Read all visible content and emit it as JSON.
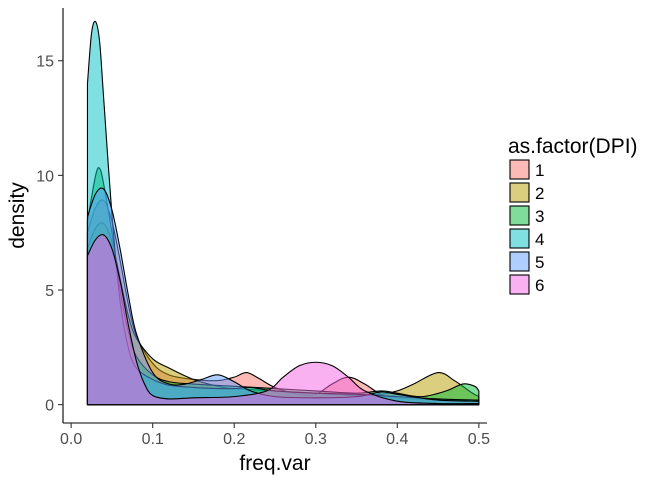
{
  "chart_data": {
    "type": "area",
    "xlabel": "freq.var",
    "ylabel": "density",
    "xlim": [
      -0.01,
      0.51
    ],
    "ylim": [
      -0.8,
      17.3
    ],
    "x_ticks": [
      0.0,
      0.1,
      0.2,
      0.3,
      0.4,
      0.5
    ],
    "x_tick_labels": [
      "0.0",
      "0.1",
      "0.2",
      "0.3",
      "0.4",
      "0.5"
    ],
    "y_ticks": [
      0,
      5,
      10,
      15
    ],
    "y_tick_labels": [
      "0",
      "5",
      "10",
      "15"
    ],
    "grid": false,
    "legend": {
      "title": "as.factor(DPI)",
      "position": "right",
      "entries": [
        "1",
        "2",
        "3",
        "4",
        "5",
        "6"
      ]
    },
    "series": [
      {
        "name": "1",
        "color": "#F8766D",
        "points": [
          [
            0.02,
            7.5
          ],
          [
            0.03,
            8.6
          ],
          [
            0.04,
            8.9
          ],
          [
            0.05,
            8.0
          ],
          [
            0.06,
            6.3
          ],
          [
            0.07,
            4.4
          ],
          [
            0.08,
            3.0
          ],
          [
            0.1,
            1.8
          ],
          [
            0.12,
            1.3
          ],
          [
            0.15,
            1.1
          ],
          [
            0.18,
            1.05
          ],
          [
            0.2,
            1.2
          ],
          [
            0.215,
            1.4
          ],
          [
            0.23,
            1.15
          ],
          [
            0.25,
            0.75
          ],
          [
            0.28,
            0.45
          ],
          [
            0.3,
            0.45
          ],
          [
            0.32,
            0.9
          ],
          [
            0.34,
            1.2
          ],
          [
            0.36,
            0.9
          ],
          [
            0.38,
            0.45
          ],
          [
            0.4,
            0.3
          ],
          [
            0.45,
            0.2
          ],
          [
            0.5,
            0.15
          ]
        ]
      },
      {
        "name": "2",
        "color": "#B79F00",
        "points": [
          [
            0.02,
            6.8
          ],
          [
            0.03,
            7.7
          ],
          [
            0.04,
            7.9
          ],
          [
            0.05,
            7.1
          ],
          [
            0.06,
            5.5
          ],
          [
            0.07,
            3.9
          ],
          [
            0.08,
            2.9
          ],
          [
            0.1,
            2.0
          ],
          [
            0.12,
            1.6
          ],
          [
            0.15,
            1.1
          ],
          [
            0.18,
            0.8
          ],
          [
            0.2,
            0.7
          ],
          [
            0.25,
            0.6
          ],
          [
            0.3,
            0.5
          ],
          [
            0.35,
            0.4
          ],
          [
            0.38,
            0.45
          ],
          [
            0.4,
            0.6
          ],
          [
            0.42,
            0.9
          ],
          [
            0.45,
            1.4
          ],
          [
            0.47,
            1.05
          ],
          [
            0.49,
            0.55
          ],
          [
            0.5,
            0.35
          ]
        ]
      },
      {
        "name": "3",
        "color": "#00BA38",
        "points": [
          [
            0.02,
            8.0
          ],
          [
            0.03,
            10.0
          ],
          [
            0.035,
            10.3
          ],
          [
            0.04,
            9.6
          ],
          [
            0.05,
            7.5
          ],
          [
            0.06,
            5.0
          ],
          [
            0.07,
            3.2
          ],
          [
            0.08,
            2.1
          ],
          [
            0.1,
            1.3
          ],
          [
            0.12,
            1.0
          ],
          [
            0.15,
            0.9
          ],
          [
            0.2,
            0.8
          ],
          [
            0.25,
            0.7
          ],
          [
            0.3,
            0.6
          ],
          [
            0.35,
            0.5
          ],
          [
            0.38,
            0.6
          ],
          [
            0.4,
            0.5
          ],
          [
            0.43,
            0.35
          ],
          [
            0.46,
            0.6
          ],
          [
            0.48,
            0.9
          ],
          [
            0.495,
            0.8
          ],
          [
            0.5,
            0.6
          ]
        ]
      },
      {
        "name": "4",
        "color": "#00BFC4",
        "points": [
          [
            0.02,
            14.0
          ],
          [
            0.025,
            16.2
          ],
          [
            0.03,
            16.7
          ],
          [
            0.035,
            15.8
          ],
          [
            0.04,
            13.3
          ],
          [
            0.05,
            8.3
          ],
          [
            0.06,
            4.5
          ],
          [
            0.07,
            2.5
          ],
          [
            0.08,
            1.6
          ],
          [
            0.1,
            1.1
          ],
          [
            0.12,
            0.85
          ],
          [
            0.15,
            0.75
          ],
          [
            0.18,
            0.7
          ],
          [
            0.2,
            0.7
          ],
          [
            0.22,
            0.75
          ],
          [
            0.25,
            0.6
          ],
          [
            0.3,
            0.5
          ],
          [
            0.35,
            0.45
          ],
          [
            0.4,
            0.35
          ],
          [
            0.45,
            0.25
          ],
          [
            0.5,
            0.2
          ]
        ]
      },
      {
        "name": "5",
        "color": "#619CFF",
        "points": [
          [
            0.02,
            8.2
          ],
          [
            0.03,
            9.2
          ],
          [
            0.04,
            9.4
          ],
          [
            0.05,
            8.5
          ],
          [
            0.06,
            6.8
          ],
          [
            0.07,
            4.8
          ],
          [
            0.08,
            3.1
          ],
          [
            0.1,
            1.4
          ],
          [
            0.12,
            0.9
          ],
          [
            0.14,
            0.9
          ],
          [
            0.16,
            1.1
          ],
          [
            0.18,
            1.3
          ],
          [
            0.2,
            1.0
          ],
          [
            0.22,
            0.6
          ],
          [
            0.25,
            0.35
          ],
          [
            0.3,
            0.3
          ],
          [
            0.35,
            0.35
          ],
          [
            0.38,
            0.55
          ],
          [
            0.4,
            0.45
          ],
          [
            0.45,
            0.2
          ],
          [
            0.5,
            0.15
          ]
        ]
      },
      {
        "name": "6",
        "color": "#F564E3",
        "points": [
          [
            0.02,
            6.5
          ],
          [
            0.03,
            7.2
          ],
          [
            0.04,
            7.4
          ],
          [
            0.05,
            6.8
          ],
          [
            0.06,
            5.4
          ],
          [
            0.07,
            3.5
          ],
          [
            0.08,
            1.9
          ],
          [
            0.09,
            0.9
          ],
          [
            0.1,
            0.4
          ],
          [
            0.12,
            0.25
          ],
          [
            0.15,
            0.3
          ],
          [
            0.2,
            0.35
          ],
          [
            0.24,
            0.6
          ],
          [
            0.26,
            1.2
          ],
          [
            0.28,
            1.7
          ],
          [
            0.3,
            1.85
          ],
          [
            0.32,
            1.7
          ],
          [
            0.34,
            1.2
          ],
          [
            0.36,
            0.6
          ],
          [
            0.4,
            0.15
          ],
          [
            0.45,
            0.05
          ],
          [
            0.5,
            0.05
          ]
        ]
      }
    ]
  }
}
